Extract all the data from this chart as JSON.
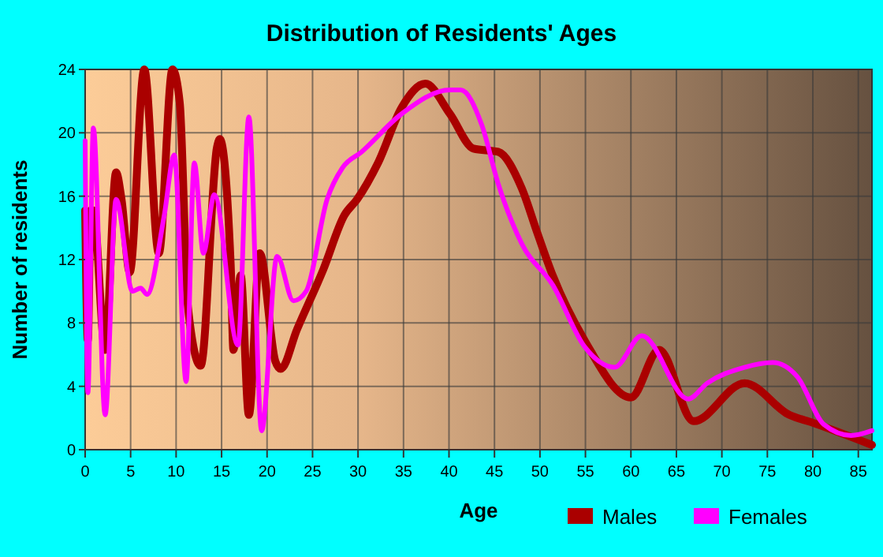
{
  "chart_data": {
    "type": "line",
    "title": "Distribution of Residents' Ages",
    "xlabel": "Age",
    "ylabel": "Number of residents",
    "xlim": [
      0,
      86.5
    ],
    "xticks": [
      0,
      5,
      10,
      15,
      20,
      25,
      30,
      35,
      40,
      45,
      50,
      55,
      60,
      65,
      70,
      75,
      80,
      85
    ],
    "ylim": [
      0,
      24
    ],
    "yticks": [
      0,
      4,
      8,
      12,
      16,
      20,
      24
    ],
    "grid": true,
    "legend": "bottom right",
    "marker": "none",
    "line_style": "solid",
    "series": [
      {
        "name": "Males",
        "color": "#aa0000",
        "x": [
          0,
          0.3,
          0.6,
          0.9,
          2.2,
          3.4,
          4,
          4.9,
          6.5,
          8.1,
          9.6,
          10.4,
          11.3,
          12.7,
          14.5,
          14.8,
          16,
          16.3,
          17.1,
          18,
          19.2,
          20.9,
          21.5,
          23.3,
          26.2,
          28.5,
          29.9,
          32.2,
          34.8,
          37.4,
          40.1,
          42.7,
          45.4,
          48,
          49.7,
          51.4,
          54.9,
          60,
          63.1,
          66.9,
          72.5,
          77.4,
          80,
          86.5
        ],
        "values": [
          15.1,
          6.9,
          15.1,
          15.1,
          6.3,
          17.5,
          15.8,
          11.2,
          24,
          12.4,
          24,
          21.9,
          9,
          5.3,
          19.1,
          19.6,
          11.7,
          6.3,
          11,
          2.2,
          12.4,
          5.6,
          5.1,
          7.6,
          11.4,
          14.8,
          15.8,
          18.1,
          21.6,
          23.1,
          21.2,
          19,
          18.8,
          16.5,
          13.7,
          11,
          6.9,
          3.3,
          6.3,
          1.8,
          4.2,
          2.2,
          1.7,
          0.3
        ]
      },
      {
        "name": "Females",
        "color": "#ff00ff",
        "x": [
          0,
          0.3,
          0.9,
          2.2,
          3.4,
          5.2,
          6.1,
          6.8,
          8.7,
          9.8,
          11.1,
          12,
          13,
          14.2,
          16.8,
          18,
          19.4,
          21.1,
          22.9,
          24.3,
          26.6,
          28.3,
          30.4,
          34.8,
          40.1,
          41.3,
          43.6,
          45.4,
          48,
          51.4,
          54.9,
          58.2,
          61.2,
          66.3,
          68.4,
          72.5,
          75.6,
          78.3,
          81.2,
          84.2,
          86.5
        ],
        "values": [
          19.5,
          3.6,
          20.3,
          2.2,
          15.8,
          10,
          10.2,
          9.8,
          14.8,
          18.6,
          4.3,
          18.1,
          12.4,
          16.1,
          6.6,
          21,
          1.2,
          12.2,
          9.4,
          10,
          15.8,
          17.8,
          18.8,
          21.2,
          22.7,
          22.7,
          20.5,
          16.8,
          13,
          10.4,
          6.5,
          5.2,
          7.2,
          3.2,
          4.2,
          5.2,
          5.5,
          4.6,
          1.6,
          0.9,
          1.2
        ]
      }
    ]
  }
}
